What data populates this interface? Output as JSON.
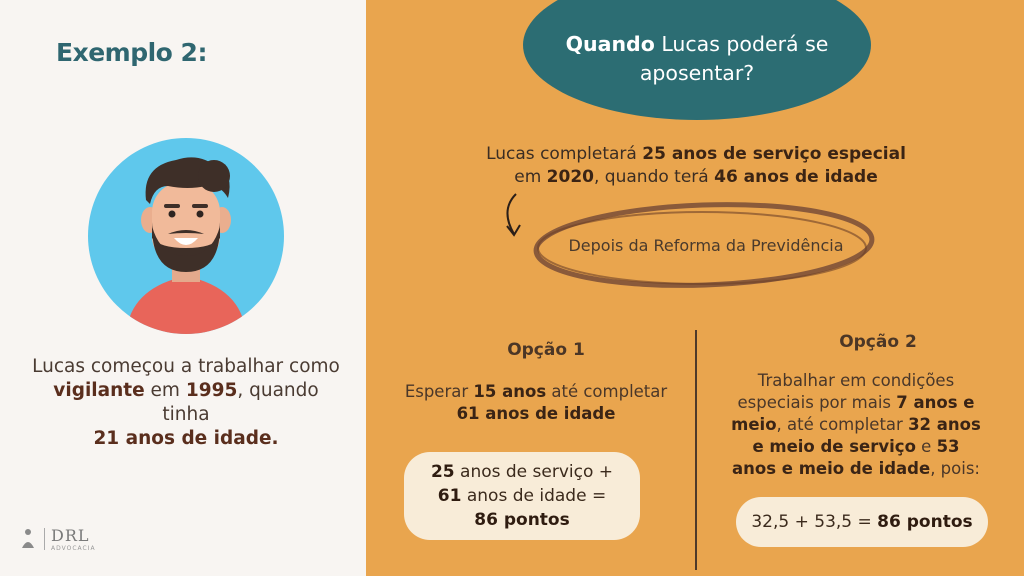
{
  "left": {
    "title": "Exemplo 2:",
    "intro": {
      "p1": "Lucas começou a trabalhar como ",
      "b1": "vigilante",
      "p2": " em ",
      "b2": "1995",
      "p3": ", quando tinha ",
      "b3": "21 anos de idade."
    },
    "logo": {
      "text": "DRL",
      "sub": "ADVOCACIA"
    }
  },
  "right": {
    "bubble": {
      "bold": "Quando",
      "rest": " Lucas poderá se aposentar?"
    },
    "statement": {
      "p1": "Lucas completará ",
      "b1": "25 anos de serviço especial",
      "p2": " em ",
      "b2": "2020",
      "p3": ", quando terá ",
      "b3": "46 anos de idade"
    },
    "reform_label": "Depois da Reforma da Previdência",
    "option1": {
      "heading": "Opção 1",
      "body": {
        "p1": "Esperar ",
        "b1": "15 anos",
        "p2": " até completar ",
        "b2": "61 anos de idade"
      },
      "result": {
        "b1": "25",
        "p1": " anos de serviço + ",
        "b2": "61",
        "p2": " anos de idade = ",
        "b3": "86 pontos"
      }
    },
    "option2": {
      "heading": "Opção 2",
      "body": {
        "p1": "Trabalhar em condições especiais por mais ",
        "b1": "7 anos e meio",
        "p2": ", até completar ",
        "b2": "32 anos e meio de serviço",
        "p3": " e ",
        "b3": "53 anos e meio de idade",
        "p4": ", pois:"
      },
      "result": {
        "p1": "32,5 + 53,5 = ",
        "b1": "86 pontos"
      }
    }
  },
  "colors": {
    "teal": "#2c6d73",
    "orange": "#e9a54e",
    "brown": "#5a2e1d",
    "cream": "#f8ecd8"
  }
}
